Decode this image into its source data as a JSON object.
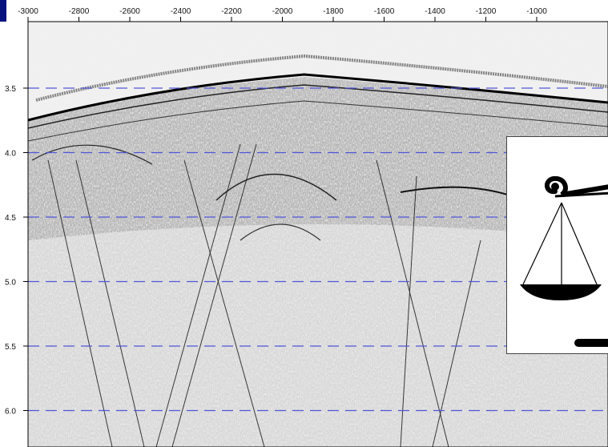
{
  "colors": {
    "frame": "#07127f",
    "section_paper": "#ededed",
    "wiggle": "#111111",
    "guide_lines": "#4f56d8"
  },
  "axis": {
    "x_tick_labels": [
      "-3000",
      "-2800",
      "-2600",
      "-2400",
      "-2200",
      "-2000",
      "-1800",
      "-1600",
      "-1400",
      "-1200",
      "-1000"
    ],
    "y_tick_labels": [
      "3.5",
      "4.0",
      "4.5",
      "5.0",
      "5.5",
      "6.0"
    ]
  },
  "logo": {
    "icon": "balance-scale-icon"
  }
}
